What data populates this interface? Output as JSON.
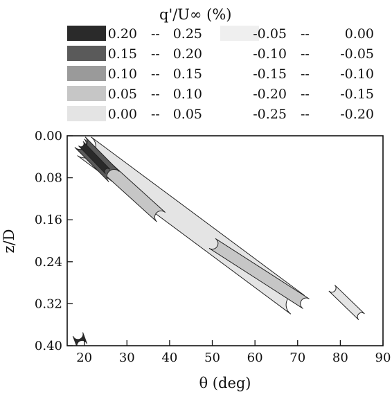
{
  "chart_data": {
    "type": "contour",
    "legend": {
      "title": "q'/U∞ (%)",
      "entries": [
        {
          "low": "0.20",
          "sep": "--",
          "high": "0.25",
          "fill": "#2a2a2a"
        },
        {
          "low": "0.15",
          "sep": "--",
          "high": "0.20",
          "fill": "#5a5a5a"
        },
        {
          "low": "0.10",
          "sep": "--",
          "high": "0.15",
          "fill": "#9a9a9a"
        },
        {
          "low": "0.05",
          "sep": "--",
          "high": "0.10",
          "fill": "#c6c6c6"
        },
        {
          "low": "0.00",
          "sep": "--",
          "high": "0.05",
          "fill": "#e4e4e4"
        },
        {
          "low": "-0.05",
          "sep": "--",
          "high": "0.00",
          "fill": "#efefef"
        },
        {
          "low": "-0.10",
          "sep": "--",
          "high": "-0.05",
          "fill": "#ffffff"
        },
        {
          "low": "-0.15",
          "sep": "--",
          "high": "-0.10",
          "fill": "#ffffff"
        },
        {
          "low": "-0.20",
          "sep": "--",
          "high": "-0.15",
          "fill": "#ffffff"
        },
        {
          "low": "-0.25",
          "sep": "--",
          "high": "-0.20",
          "fill": "#ffffff"
        }
      ]
    },
    "x_axis": {
      "label": "θ (deg)",
      "range": [
        16,
        90
      ],
      "ticks": [
        20,
        30,
        40,
        50,
        60,
        70,
        80,
        90
      ]
    },
    "y_axis": {
      "label": "z/D",
      "range": [
        0.0,
        0.4
      ],
      "inverted": true,
      "ticks": [
        "0.00",
        "0.08",
        "0.16",
        "0.24",
        "0.32",
        "0.40"
      ]
    },
    "bands": [
      {
        "x1": 20,
        "y1": 0.02,
        "x2": 70,
        "y2": 0.322,
        "half_width": 0.022,
        "level": "0.00 -- 0.05"
      },
      {
        "x1": 19,
        "y1": 0.015,
        "x2": 38,
        "y2": 0.155,
        "half_width": 0.012,
        "level": "0.05 -- 0.10"
      },
      {
        "x1": 50,
        "y1": 0.205,
        "x2": 72,
        "y2": 0.32,
        "half_width": 0.011,
        "level": "0.05 -- 0.10"
      },
      {
        "x1": 78,
        "y1": 0.29,
        "x2": 85,
        "y2": 0.345,
        "half_width": 0.008,
        "level": "0.00 -- 0.05"
      },
      {
        "x1": 19,
        "y1": 0.012,
        "x2": 27,
        "y2": 0.078,
        "half_width": 0.014,
        "level": "0.15 -- 0.20"
      },
      {
        "x1": 19.2,
        "y1": 0.015,
        "x2": 25.5,
        "y2": 0.068,
        "half_width": 0.006,
        "level": "0.20 -- 0.25"
      },
      {
        "x1": 18.5,
        "y1": 0.378,
        "x2": 19.5,
        "y2": 0.4,
        "half_width": 0.01,
        "level": "0.20 -- 0.25"
      }
    ]
  }
}
